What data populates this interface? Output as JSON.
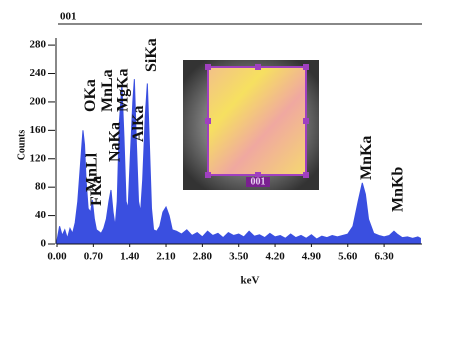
{
  "chart_data": {
    "type": "area",
    "title": "001",
    "ylabel": "Counts",
    "xlabel": "keV",
    "inset_label": "001",
    "color": "#3a4fe0",
    "x": [
      0.0,
      0.05,
      0.1,
      0.15,
      0.2,
      0.25,
      0.3,
      0.35,
      0.4,
      0.45,
      0.5,
      0.53,
      0.56,
      0.6,
      0.65,
      0.68,
      0.72,
      0.76,
      0.8,
      0.85,
      0.9,
      0.95,
      1.0,
      1.04,
      1.08,
      1.12,
      1.16,
      1.2,
      1.25,
      1.29,
      1.33,
      1.37,
      1.41,
      1.46,
      1.49,
      1.53,
      1.57,
      1.61,
      1.65,
      1.7,
      1.74,
      1.78,
      1.82,
      1.86,
      1.92,
      1.98,
      2.04,
      2.1,
      2.16,
      2.22,
      2.3,
      2.4,
      2.5,
      2.6,
      2.7,
      2.8,
      2.9,
      3.0,
      3.1,
      3.2,
      3.3,
      3.4,
      3.5,
      3.6,
      3.7,
      3.8,
      3.9,
      4.0,
      4.1,
      4.2,
      4.3,
      4.4,
      4.5,
      4.6,
      4.7,
      4.8,
      4.9,
      5.0,
      5.1,
      5.2,
      5.3,
      5.4,
      5.5,
      5.6,
      5.7,
      5.8,
      5.88,
      5.94,
      6.0,
      6.1,
      6.2,
      6.3,
      6.4,
      6.49,
      6.55,
      6.65,
      6.75,
      6.85,
      6.95,
      7.0
    ],
    "values": [
      5,
      25,
      12,
      20,
      8,
      22,
      15,
      30,
      60,
      110,
      160,
      140,
      90,
      50,
      45,
      62,
      35,
      20,
      18,
      15,
      22,
      35,
      60,
      76,
      45,
      25,
      60,
      170,
      224,
      150,
      60,
      50,
      120,
      200,
      232,
      140,
      60,
      45,
      90,
      180,
      226,
      140,
      50,
      20,
      18,
      25,
      45,
      52,
      40,
      20,
      18,
      14,
      20,
      12,
      16,
      10,
      18,
      12,
      15,
      9,
      16,
      12,
      14,
      10,
      18,
      11,
      13,
      9,
      15,
      10,
      12,
      8,
      14,
      9,
      12,
      8,
      13,
      7,
      11,
      9,
      12,
      10,
      12,
      14,
      25,
      60,
      86,
      70,
      35,
      15,
      12,
      10,
      12,
      18,
      14,
      9,
      10,
      8,
      10,
      8
    ],
    "xlim": [
      0,
      7.03
    ],
    "ylim": [
      0,
      290
    ],
    "xticks": [
      {
        "value": 0,
        "label": "0.00"
      },
      {
        "value": 0.7,
        "label": "0.70"
      },
      {
        "value": 1.4,
        "label": "1.40"
      },
      {
        "value": 2.1,
        "label": "2.10"
      },
      {
        "value": 2.8,
        "label": "2.80"
      },
      {
        "value": 3.5,
        "label": "3.50"
      },
      {
        "value": 4.2,
        "label": "4.20"
      },
      {
        "value": 4.9,
        "label": "4.90"
      },
      {
        "value": 5.6,
        "label": "5.60"
      },
      {
        "value": 6.3,
        "label": "6.30"
      }
    ],
    "yticks": [
      0,
      40,
      80,
      120,
      160,
      200,
      240,
      280
    ],
    "annotations": [
      {
        "text": "FKa",
        "x": 0.68
      },
      {
        "text": "MnLl",
        "x": 0.56
      },
      {
        "text": "OKa",
        "x": 0.53
      },
      {
        "text": "MnLa",
        "x": 0.7
      },
      {
        "text": "NaKa",
        "x": 1.04
      },
      {
        "text": "MgKa",
        "x": 1.25
      },
      {
        "text": "AlKa",
        "x": 1.49
      },
      {
        "text": "SiKa",
        "x": 1.74
      },
      {
        "text": "MnKa",
        "x": 5.88
      },
      {
        "text": "MnKb",
        "x": 6.49
      }
    ]
  }
}
